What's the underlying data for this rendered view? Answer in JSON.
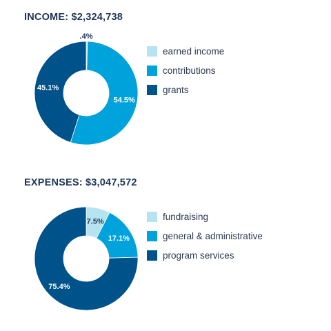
{
  "chart_data": [
    {
      "type": "pie",
      "title": "INCOME: $2,324,738",
      "categories": [
        "earned income",
        "contributions",
        "grants"
      ],
      "values": [
        0.4,
        54.5,
        45.1
      ],
      "labels": [
        ".4%",
        "54.5%",
        "45.1%"
      ],
      "colors": [
        "#b6e3f2",
        "#00a2db",
        "#00528a"
      ],
      "label_colors": [
        "#1d3557",
        "#ffffff",
        "#ffffff"
      ],
      "donut": true,
      "legend_position": "right"
    },
    {
      "type": "pie",
      "title": "EXPENSES: $3,047,572",
      "categories": [
        "fundraising",
        "general & administrative",
        "program services"
      ],
      "values": [
        7.5,
        17.1,
        75.4
      ],
      "labels": [
        "7.5%",
        "17.1%",
        "75.4%"
      ],
      "colors": [
        "#b6e3f2",
        "#00a2db",
        "#00528a"
      ],
      "label_colors": [
        "#1d3557",
        "#ffffff",
        "#ffffff"
      ],
      "donut": true,
      "legend_position": "right"
    }
  ]
}
